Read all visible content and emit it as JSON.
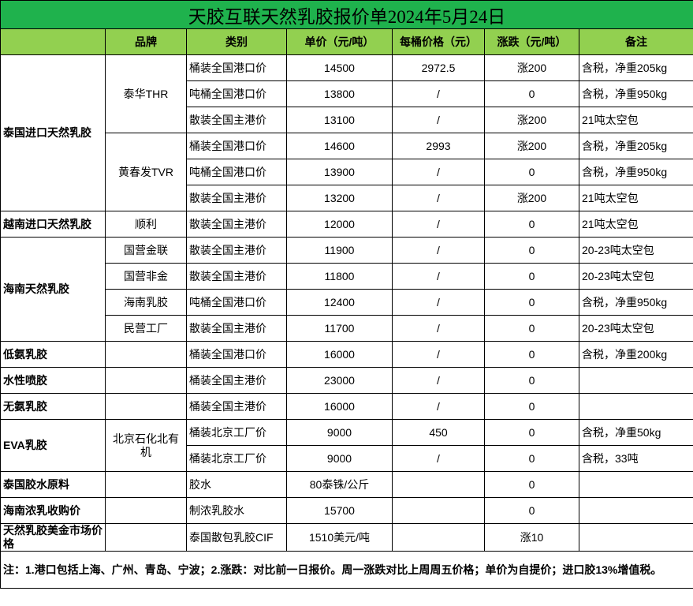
{
  "title": "天胶互联天然乳胶报价单2024年5月24日",
  "colors": {
    "title_bg": "#1fb24d",
    "header_bg": "#92d050"
  },
  "headers": [
    "",
    "品牌",
    "类别",
    "单价（元/吨）",
    "每桶价格（元）",
    "涨跌（元/吨）",
    "备注"
  ],
  "groups": [
    {
      "category": "泰国进口天然乳胶",
      "brands": [
        {
          "brand": "泰华THR",
          "items": [
            {
              "type": "桶装全国港口价",
              "price": "14500",
              "barrel": "2972.5",
              "change": "涨200",
              "note": "含税，净重205kg"
            },
            {
              "type": "吨桶全国港口价",
              "price": "13800",
              "barrel": "/",
              "change": "0",
              "note": "含税，净重950kg"
            },
            {
              "type": "散装全国主港价",
              "price": "13100",
              "barrel": "/",
              "change": "涨200",
              "note": "21吨太空包"
            }
          ]
        },
        {
          "brand": "黄春发TVR",
          "items": [
            {
              "type": "桶装全国港口价",
              "price": "14600",
              "barrel": "2993",
              "change": "涨200",
              "note": "含税，净重205kg"
            },
            {
              "type": "吨桶全国港口价",
              "price": "13900",
              "barrel": "/",
              "change": "0",
              "note": "含税，净重950kg"
            },
            {
              "type": "散装全国主港价",
              "price": "13200",
              "barrel": "/",
              "change": "涨200",
              "note": "21吨太空包"
            }
          ]
        }
      ]
    },
    {
      "category": "越南进口天然乳胶",
      "brands": [
        {
          "brand": "顺利",
          "items": [
            {
              "type": "散装全国主港价",
              "price": "12000",
              "barrel": "/",
              "change": "0",
              "note": "21吨太空包"
            }
          ]
        }
      ]
    },
    {
      "category": "海南天然乳胶",
      "brands": [
        {
          "brand": "国营金联",
          "items": [
            {
              "type": "散装全国主港价",
              "price": "11900",
              "barrel": "/",
              "change": "0",
              "note": "20-23吨太空包"
            }
          ]
        },
        {
          "brand": "国营非金",
          "items": [
            {
              "type": "散装全国主港价",
              "price": "11800",
              "barrel": "/",
              "change": "0",
              "note": "20-23吨太空包"
            }
          ]
        },
        {
          "brand": "海南乳胶",
          "items": [
            {
              "type": "吨桶全国港口价",
              "price": "12400",
              "barrel": "/",
              "change": "0",
              "note": "含税，净重950kg"
            }
          ]
        },
        {
          "brand": "民营工厂",
          "items": [
            {
              "type": "散装全国主港价",
              "price": "11700",
              "barrel": "/",
              "change": "0",
              "note": "20-23吨太空包"
            }
          ]
        }
      ]
    },
    {
      "category": "低氨乳胶",
      "brands": [
        {
          "brand": "",
          "items": [
            {
              "type": "桶装全国港口价",
              "price": "16000",
              "barrel": "/",
              "change": "0",
              "note": "含税，净重200kg"
            }
          ]
        }
      ]
    },
    {
      "category": "水性喷胶",
      "brands": [
        {
          "brand": "",
          "items": [
            {
              "type": "桶装全国主港价",
              "price": "23000",
              "barrel": "/",
              "change": "0",
              "note": ""
            }
          ]
        }
      ]
    },
    {
      "category": "无氨乳胶",
      "brands": [
        {
          "brand": "",
          "items": [
            {
              "type": "桶装全国主港价",
              "price": "16000",
              "barrel": "/",
              "change": "0",
              "note": ""
            }
          ]
        }
      ]
    },
    {
      "category": "EVA乳胶",
      "brands": [
        {
          "brand": "北京石化北有机",
          "items": [
            {
              "type": "桶装北京工厂价",
              "price": "9000",
              "barrel": "450",
              "change": "0",
              "note": "含税，净重50kg"
            },
            {
              "type": "桶装北京工厂价",
              "price": "9000",
              "barrel": "/",
              "change": "0",
              "note": "含税，33吨"
            }
          ]
        }
      ]
    },
    {
      "category": "泰国胶水原料",
      "brands": [
        {
          "brand": "",
          "items": [
            {
              "type": "胶水",
              "price": "80泰铢/公斤",
              "barrel": "",
              "change": "0",
              "note": ""
            }
          ]
        }
      ]
    },
    {
      "category": "海南浓乳收购价",
      "brands": [
        {
          "brand": "",
          "items": [
            {
              "type": "制浓乳胶水",
              "price": "15700",
              "barrel": "",
              "change": "0",
              "note": ""
            }
          ]
        }
      ]
    },
    {
      "category": "天然乳胶美金市场价格",
      "brands": [
        {
          "brand": "",
          "items": [
            {
              "type": "泰国散包乳胶CIF",
              "price": "1510美元/吨",
              "barrel": "",
              "change": "涨10",
              "note": ""
            }
          ]
        }
      ]
    }
  ],
  "footnote": "注：1.港口包括上海、广州、青岛、宁波；2.涨跌：对比前一日报价。周一涨跌对比上周周五价格；单价为自提价；进口胶13%增值税。"
}
